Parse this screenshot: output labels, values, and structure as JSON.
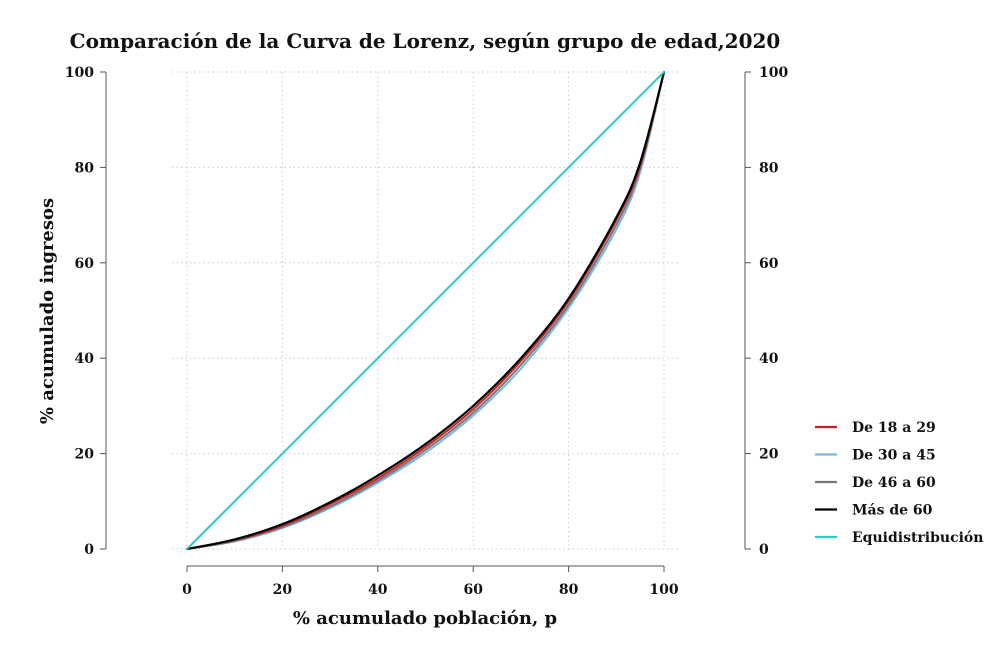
{
  "chart_data": {
    "type": "line",
    "title": "Comparación de la Curva de Lorenz, según grupo de edad,2020",
    "xlabel": "% acumulado población, p",
    "ylabel": "% acumulado ingresos",
    "xlim": [
      0,
      100
    ],
    "ylim": [
      0,
      100
    ],
    "x_ticks": [
      0,
      20,
      40,
      60,
      80,
      100
    ],
    "y_ticks": [
      0,
      20,
      40,
      60,
      80,
      100
    ],
    "y_ticks_right": [
      0,
      20,
      40,
      60,
      80,
      100
    ],
    "grid": true,
    "legend_position": "right",
    "x": [
      0,
      10,
      20,
      30,
      40,
      50,
      60,
      70,
      80,
      90,
      95,
      100
    ],
    "series": [
      {
        "name": "De 18 a 29",
        "color": "#cc1f1f",
        "values": [
          0,
          1.9,
          4.9,
          9.4,
          14.8,
          21.4,
          29.3,
          39.4,
          52.0,
          69.0,
          80.5,
          100
        ]
      },
      {
        "name": "De 30 a 45",
        "color": "#7fb3e0",
        "values": [
          0,
          1.6,
          4.4,
          8.6,
          13.9,
          20.2,
          28.0,
          37.8,
          50.5,
          67.0,
          79.0,
          100
        ]
      },
      {
        "name": "De 46 a 60",
        "color": "#777777",
        "values": [
          0,
          1.7,
          4.6,
          8.9,
          14.3,
          20.8,
          28.6,
          38.6,
          51.2,
          68.0,
          79.8,
          100
        ]
      },
      {
        "name": "Más de 60",
        "color": "#000000",
        "values": [
          0,
          2.0,
          5.2,
          9.8,
          15.4,
          22.0,
          30.0,
          40.0,
          52.5,
          69.5,
          81.0,
          100
        ]
      },
      {
        "name": "Equidistribución",
        "color": "#2ec9bf",
        "values": [
          0,
          10,
          20,
          30,
          40,
          50,
          60,
          70,
          80,
          90,
          95,
          100
        ]
      }
    ]
  }
}
